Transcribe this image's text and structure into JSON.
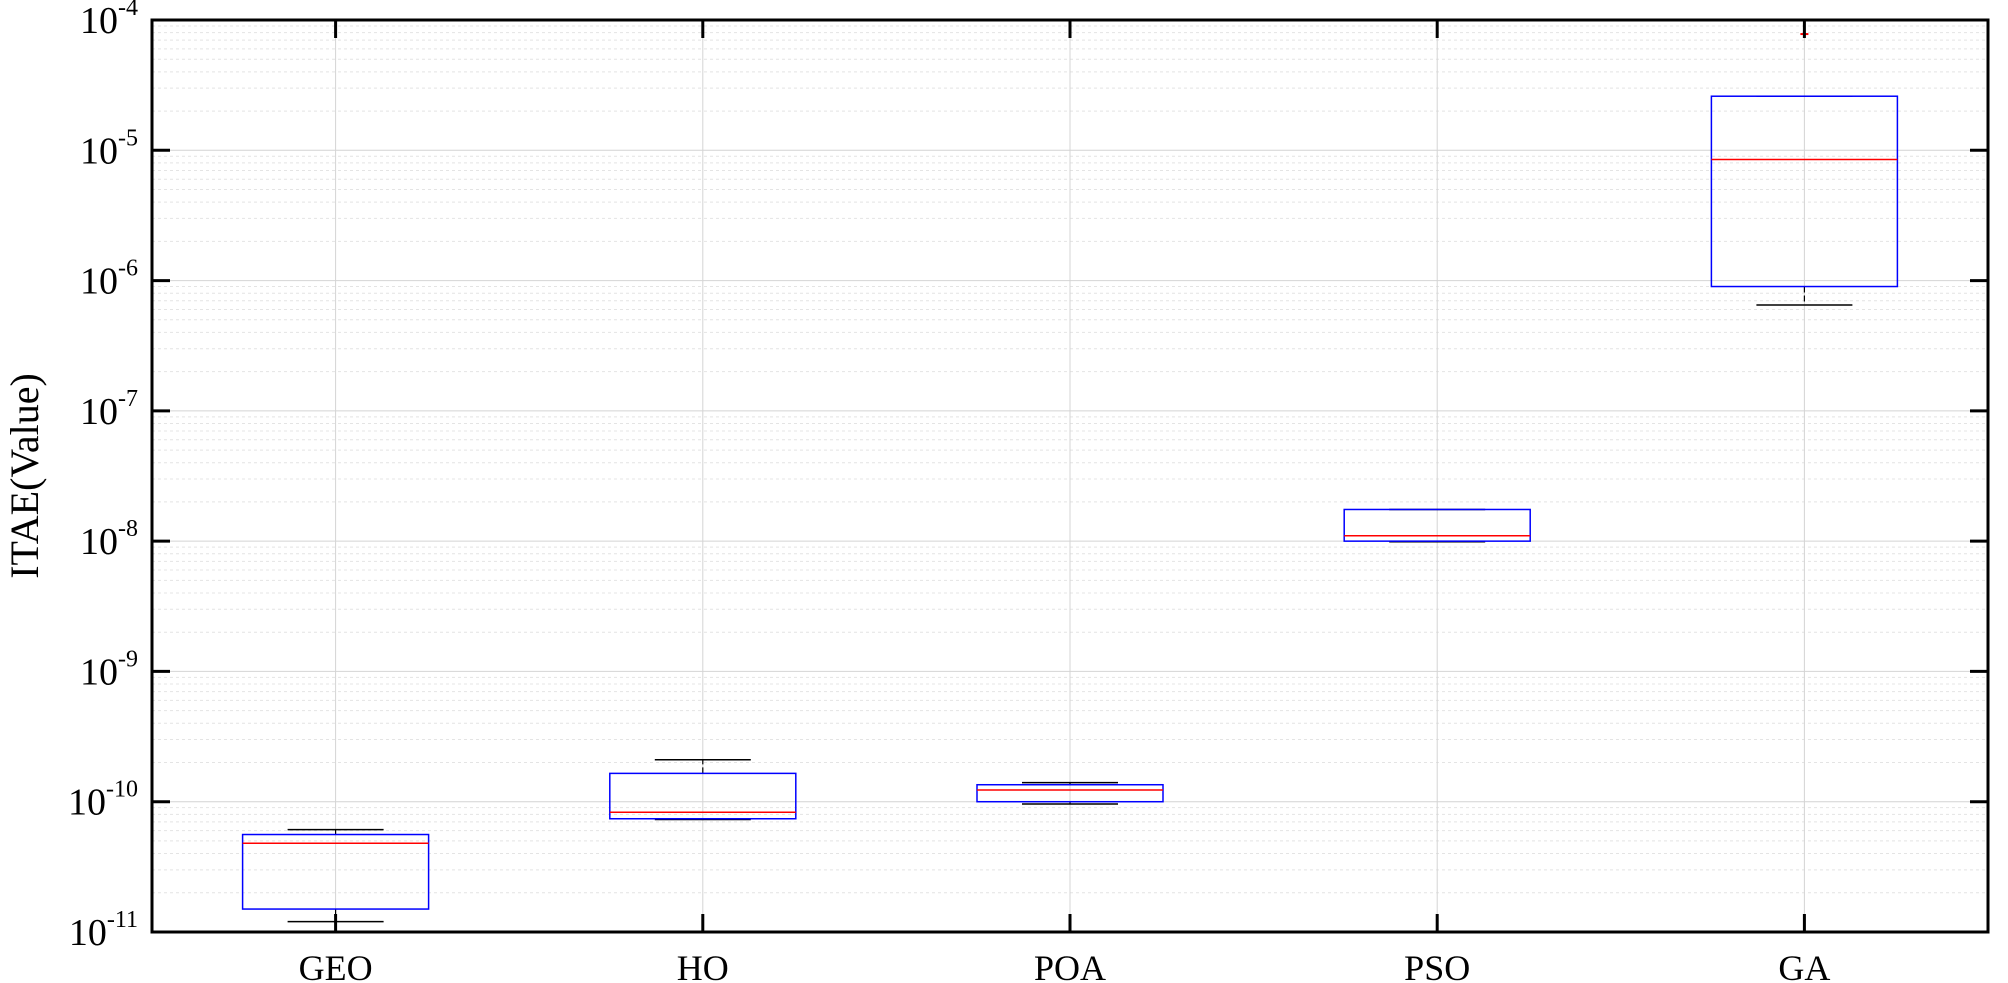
{
  "chart_data": {
    "type": "box",
    "title": "",
    "xlabel": "",
    "ylabel": "ITAE(Value)",
    "yscale": "log",
    "ylim": [
      1e-11,
      0.0001
    ],
    "yticks": [
      {
        "value": 1e-11,
        "base": "10",
        "exp": "-11"
      },
      {
        "value": 1e-10,
        "base": "10",
        "exp": "-10"
      },
      {
        "value": 1e-09,
        "base": "10",
        "exp": "-9"
      },
      {
        "value": 1e-08,
        "base": "10",
        "exp": "-8"
      },
      {
        "value": 1e-07,
        "base": "10",
        "exp": "-7"
      },
      {
        "value": 1e-06,
        "base": "10",
        "exp": "-6"
      },
      {
        "value": 1e-05,
        "base": "10",
        "exp": "-5"
      },
      {
        "value": 0.0001,
        "base": "10",
        "exp": "-4"
      }
    ],
    "grid": true,
    "categories": [
      "GEO",
      "HO",
      "POA",
      "PSO",
      "GA"
    ],
    "boxes": [
      {
        "category": "GEO",
        "whisker_low": 1.2e-11,
        "q1": 1.5e-11,
        "median": 4.8e-11,
        "q3": 5.6e-11,
        "whisker_high": 6.1e-11,
        "outliers": []
      },
      {
        "category": "HO",
        "whisker_low": 7.3e-11,
        "q1": 7.4e-11,
        "median": 8.3e-11,
        "q3": 1.65e-10,
        "whisker_high": 2.1e-10,
        "outliers": []
      },
      {
        "category": "POA",
        "whisker_low": 9.6e-11,
        "q1": 1e-10,
        "median": 1.23e-10,
        "q3": 1.35e-10,
        "whisker_high": 1.4e-10,
        "outliers": []
      },
      {
        "category": "PSO",
        "whisker_low": 9.9e-09,
        "q1": 1e-08,
        "median": 1.1e-08,
        "q3": 1.75e-08,
        "whisker_high": 1.75e-08,
        "outliers": []
      },
      {
        "category": "GA",
        "whisker_low": 6.5e-07,
        "q1": 9e-07,
        "median": 8.5e-06,
        "q3": 2.6e-05,
        "whisker_high": 2.6e-05,
        "outliers": [
          7.8e-05
        ]
      }
    ],
    "colors": {
      "box": "#0000ff",
      "median": "#ff0000",
      "whisker": "#000000",
      "outlier": "#ff0000",
      "grid_major": "#d4d4d4",
      "grid_minor": "#e4e4e4",
      "axis": "#000000"
    }
  }
}
